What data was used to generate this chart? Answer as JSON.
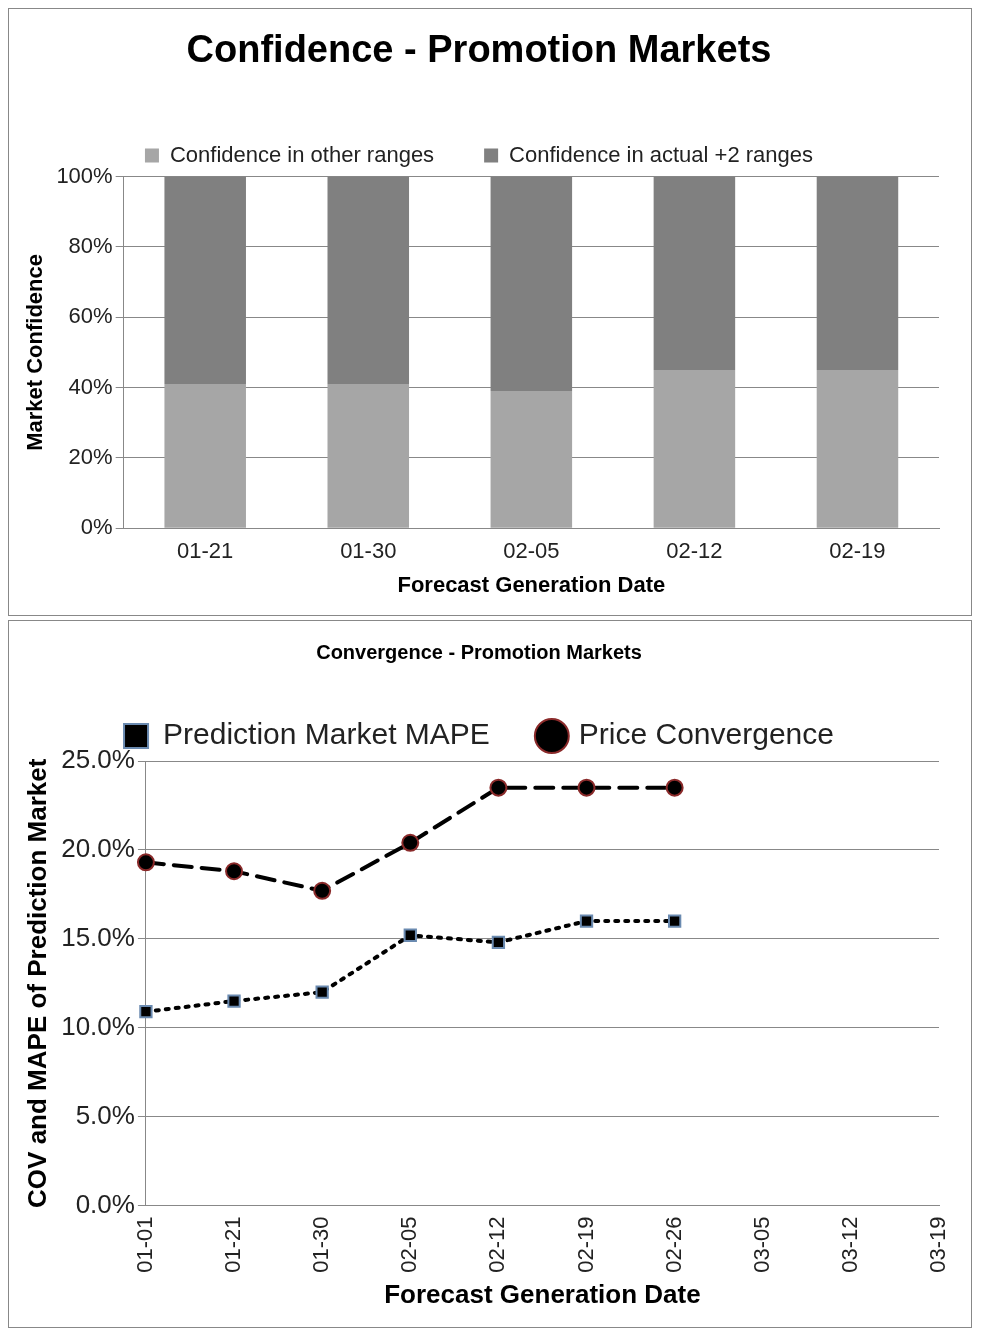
{
  "chart_data": [
    {
      "type": "bar",
      "title": "Confidence - Promotion Markets",
      "xlabel": "Forecast Generation Date",
      "ylabel": "Market Confidence",
      "categories": [
        "01-21",
        "01-30",
        "02-05",
        "02-12",
        "02-19"
      ],
      "stacked": true,
      "series": [
        {
          "name": "Confidence in other ranges",
          "color": "#a6a6a6",
          "values": [
            41,
            41,
            39,
            45,
            45
          ]
        },
        {
          "name": "Confidence in actual +2 ranges",
          "color": "#808080",
          "values": [
            59,
            59,
            61,
            55,
            55
          ]
        }
      ],
      "ylim": [
        0,
        100
      ],
      "yticks": [
        {
          "value": 0,
          "label": "0%"
        },
        {
          "value": 20,
          "label": "20%"
        },
        {
          "value": 40,
          "label": "40%"
        },
        {
          "value": 60,
          "label": "60%"
        },
        {
          "value": 80,
          "label": "80%"
        },
        {
          "value": 100,
          "label": "100%"
        }
      ],
      "grid": "y",
      "legend": "top"
    },
    {
      "type": "line",
      "title": "Convergence - Promotion Markets",
      "xlabel": "Forecast Generation Date",
      "ylabel": "COV and MAPE of Prediction Market",
      "categories": [
        "01-01",
        "01-21",
        "01-30",
        "02-05",
        "02-12",
        "02-19",
        "02-26",
        "03-05",
        "03-12",
        "03-19"
      ],
      "series": [
        {
          "name": "Prediction Market MAPE",
          "color": "#000000",
          "marker": "square",
          "line_style": "dotted",
          "values": [
            10.9,
            11.5,
            12.0,
            15.2,
            14.8,
            16.0,
            16.0,
            null,
            null,
            null
          ]
        },
        {
          "name": "Price Convergence",
          "color": "#000000",
          "marker": "circle",
          "line_style": "dashed",
          "values": [
            19.3,
            18.8,
            17.7,
            20.4,
            23.5,
            23.5,
            23.5,
            null,
            null,
            null
          ]
        }
      ],
      "ylim": [
        0,
        25
      ],
      "yticks": [
        {
          "value": 0,
          "label": "0.0%"
        },
        {
          "value": 5,
          "label": "5.0%"
        },
        {
          "value": 10,
          "label": "10.0%"
        },
        {
          "value": 15,
          "label": "15.0%"
        },
        {
          "value": 20,
          "label": "20.0%"
        },
        {
          "value": 25,
          "label": "25.0%"
        }
      ],
      "grid": "y",
      "legend": "top"
    }
  ]
}
